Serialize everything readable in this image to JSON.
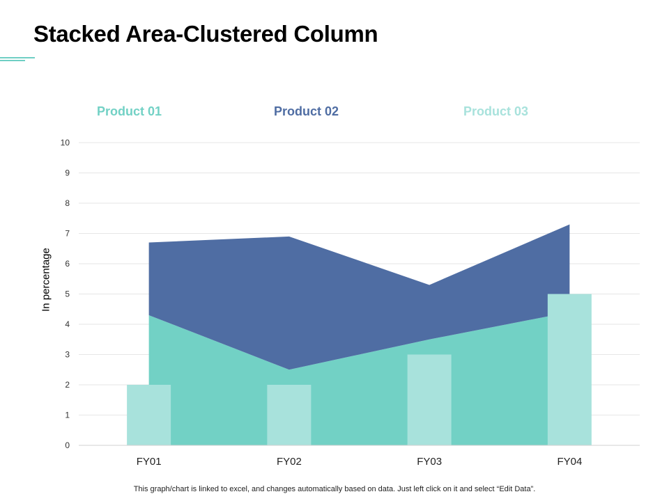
{
  "page": {
    "title": "Stacked Area-Clustered Column",
    "footnote": "This graph/chart is linked to excel, and changes automatically based on data. Just left click on it and select “Edit Data”."
  },
  "colors": {
    "accent": "#6fcfc4",
    "product01": "#72d1c5",
    "product02": "#4f6da3",
    "product03": "#a8e2dc",
    "grid": "#e6e6e6",
    "axis": "#d0d0d0"
  },
  "chart_data": {
    "type": "area",
    "categories": [
      "FY01",
      "FY02",
      "FY03",
      "FY04"
    ],
    "ylabel": "In percentage",
    "ylim": [
      0,
      10
    ],
    "yticks": [
      "0",
      "1",
      "2",
      "3",
      "4",
      "5",
      "6",
      "7",
      "8",
      "9",
      "10"
    ],
    "legend_position": "top",
    "series": [
      {
        "name": "Product 01",
        "kind": "stacked-area",
        "values": [
          4.3,
          2.5,
          3.5,
          4.4
        ]
      },
      {
        "name": "Product 02",
        "kind": "stacked-area",
        "values": [
          2.4,
          4.4,
          1.8,
          2.9
        ]
      },
      {
        "name": "Product 03",
        "kind": "clustered-column",
        "values": [
          2,
          2,
          3,
          5
        ]
      }
    ]
  }
}
